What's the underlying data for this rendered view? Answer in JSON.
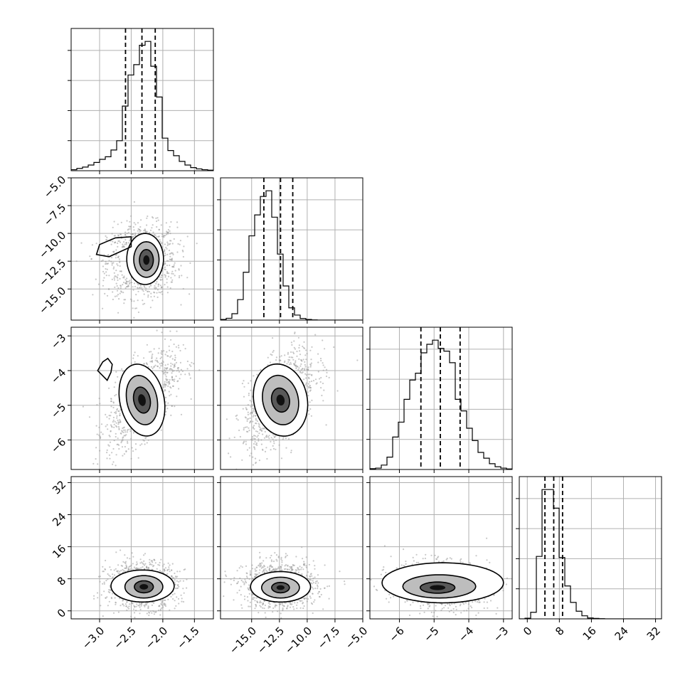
{
  "chart_data": {
    "type": "corner",
    "parameters": [
      {
        "range": [
          -3.45,
          -1.2
        ],
        "ticks": [
          -3.0,
          -2.5,
          -2.0,
          -1.5
        ],
        "tick_labels": [
          "−3.0",
          "−2.5",
          "−2.0",
          "−1.5"
        ],
        "quantiles": [
          -2.59,
          -2.33,
          -2.12
        ],
        "mean": -2.33,
        "sd": 0.22,
        "histogram": {
          "edges": [
            -3.45,
            -3.36,
            -3.27,
            -3.18,
            -3.09,
            -3.0,
            -2.91,
            -2.82,
            -2.73,
            -2.64,
            -2.55,
            -2.46,
            -2.37,
            -2.28,
            -2.19,
            -2.1,
            -2.01,
            -1.92,
            -1.83,
            -1.74,
            -1.65,
            -1.56,
            -1.47,
            -1.38,
            -1.29,
            -1.2
          ],
          "counts": [
            4,
            9,
            14,
            22,
            32,
            44,
            54,
            80,
            116,
            250,
            370,
            410,
            485,
            500,
            404,
            285,
            126,
            78,
            58,
            36,
            22,
            12,
            7,
            4,
            2
          ]
        }
      },
      {
        "range": [
          -17.8,
          -5.0
        ],
        "ticks": [
          -15.0,
          -12.5,
          -10.0,
          -7.5,
          -5.0
        ],
        "tick_labels": [
          "−15.0",
          "−12.5",
          "−10.0",
          "−7.5",
          "−5.0"
        ],
        "quantiles": [
          -13.9,
          -12.4,
          -11.3
        ],
        "mean": -12.45,
        "sd": 1.3,
        "histogram": {
          "edges": [
            -17.8,
            -17.288,
            -16.776,
            -16.264,
            -15.752,
            -15.24,
            -14.728,
            -14.216,
            -13.704,
            -13.192,
            -12.68,
            -12.168,
            -11.656,
            -11.144,
            -10.632,
            -10.12,
            -9.608,
            -9.096,
            -8.584,
            -8.072,
            -7.56,
            -7.048,
            -6.536,
            -6.024,
            -5.512,
            -5.0
          ],
          "counts": [
            3,
            8,
            28,
            90,
            210,
            370,
            462,
            543,
            568,
            452,
            290,
            150,
            54,
            22,
            7,
            3,
            1,
            0,
            0,
            0,
            0,
            0,
            0,
            0,
            0
          ]
        }
      },
      {
        "range": [
          -6.85,
          -2.75
        ],
        "ticks": [
          -6,
          -5,
          -4,
          -3
        ],
        "tick_labels": [
          "−6",
          "−5",
          "−4",
          "−3"
        ],
        "quantiles": [
          -5.38,
          -4.82,
          -4.25
        ],
        "mean": -4.8,
        "sd": 0.55,
        "histogram": {
          "edges": [
            -6.85,
            -6.686,
            -6.522,
            -6.358,
            -6.194,
            -6.03,
            -5.866,
            -5.702,
            -5.538,
            -5.374,
            -5.21,
            -5.046,
            -4.882,
            -4.718,
            -4.554,
            -4.39,
            -4.226,
            -4.062,
            -3.898,
            -3.734,
            -3.57,
            -3.406,
            -3.242,
            -3.078,
            -2.914,
            -2.75
          ],
          "counts": [
            3,
            5,
            16,
            45,
            118,
            172,
            255,
            325,
            350,
            424,
            455,
            470,
            440,
            430,
            388,
            255,
            213,
            150,
            105,
            62,
            41,
            21,
            10,
            5,
            2
          ]
        }
      },
      {
        "range": [
          -2.0,
          33.5
        ],
        "ticks": [
          0,
          8,
          16,
          24,
          32
        ],
        "tick_labels": [
          "0",
          "8",
          "16",
          "24",
          "32"
        ],
        "quantiles": [
          4.4,
          6.6,
          8.8
        ],
        "mean": 6.4,
        "sd": 2.3,
        "histogram": {
          "edges": [
            -2.0,
            -0.58,
            0.84,
            2.26,
            3.68,
            5.1,
            6.52,
            7.94,
            9.36,
            10.78,
            12.2,
            13.62,
            15.04,
            16.46,
            17.88,
            19.3,
            20.72,
            22.14,
            23.56,
            24.98,
            26.4,
            27.82,
            29.24,
            30.66,
            32.08,
            33.5
          ],
          "counts": [
            0,
            3,
            30,
            285,
            590,
            590,
            505,
            280,
            150,
            75,
            35,
            14,
            4,
            2,
            1,
            0,
            0,
            0,
            0,
            0,
            0,
            0,
            0,
            0,
            0
          ]
        }
      }
    ],
    "joint": [
      {
        "x": 0,
        "y": 1,
        "rho": 0.05,
        "contours": [
          {
            "cx": -2.28,
            "cy": -12.3,
            "rx": 0.29,
            "ry": 2.3,
            "rot": 0
          },
          {
            "cx": -2.26,
            "cy": -12.35,
            "rx": 0.2,
            "ry": 1.6,
            "rot": 0
          },
          {
            "cx": -2.26,
            "cy": -12.4,
            "rx": 0.11,
            "ry": 0.95,
            "rot": 0
          }
        ],
        "blob": [
          [
            -3.0,
            -11.0
          ],
          [
            -2.75,
            -10.4
          ],
          [
            -2.5,
            -10.3
          ],
          [
            -2.5,
            -11.2
          ],
          [
            -2.85,
            -12.1
          ],
          [
            -3.05,
            -11.9
          ]
        ]
      },
      {
        "x": 0,
        "y": 2,
        "rho": 0.6,
        "contours": [
          {
            "cx": -2.33,
            "cy": -4.85,
            "rx": 0.35,
            "ry": 1.05,
            "rot": 12
          },
          {
            "cx": -2.33,
            "cy": -4.85,
            "rx": 0.24,
            "ry": 0.72,
            "rot": 12
          },
          {
            "cx": -2.33,
            "cy": -4.85,
            "rx": 0.13,
            "ry": 0.38,
            "rot": 12
          }
        ],
        "blob": [
          [
            -2.95,
            -3.75
          ],
          [
            -2.87,
            -3.65
          ],
          [
            -2.8,
            -3.82
          ],
          [
            -2.82,
            -4.05
          ],
          [
            -2.88,
            -4.28
          ],
          [
            -3.03,
            -4.0
          ]
        ]
      },
      {
        "x": 1,
        "y": 2,
        "rho": 0.55,
        "contours": [
          {
            "cx": -12.4,
            "cy": -4.85,
            "rx": 2.4,
            "ry": 1.05,
            "rot": 12
          },
          {
            "cx": -12.4,
            "cy": -4.85,
            "rx": 1.6,
            "ry": 0.72,
            "rot": 12
          },
          {
            "cx": -12.4,
            "cy": -4.85,
            "rx": 0.8,
            "ry": 0.35,
            "rot": 12
          }
        ]
      },
      {
        "x": 0,
        "y": 3,
        "rho": 0.0,
        "contours": [
          {
            "cx": -2.32,
            "cy": 6.2,
            "rx": 0.5,
            "ry": 4.0,
            "rot": 0
          },
          {
            "cx": -2.3,
            "cy": 6.0,
            "rx": 0.3,
            "ry": 2.8,
            "rot": 0
          },
          {
            "cx": -2.3,
            "cy": 6.0,
            "rx": 0.15,
            "ry": 1.5,
            "rot": 0
          }
        ]
      },
      {
        "x": 1,
        "y": 3,
        "rho": 0.0,
        "contours": [
          {
            "cx": -12.4,
            "cy": 6.0,
            "rx": 2.7,
            "ry": 3.8,
            "rot": 0
          },
          {
            "cx": -12.4,
            "cy": 5.8,
            "rx": 1.7,
            "ry": 2.6,
            "rot": 0
          },
          {
            "cx": -12.4,
            "cy": 5.8,
            "rx": 0.8,
            "ry": 1.3,
            "rot": 0
          }
        ]
      },
      {
        "x": 2,
        "y": 3,
        "rho": -0.1,
        "contours": [
          {
            "cx": -4.75,
            "cy": 7.0,
            "rx": 1.75,
            "ry": 5.0,
            "rot": 0
          },
          {
            "cx": -4.85,
            "cy": 6.1,
            "rx": 1.05,
            "ry": 2.9,
            "rot": 0
          },
          {
            "cx": -4.9,
            "cy": 5.8,
            "rx": 0.5,
            "ry": 1.4,
            "rot": 0
          }
        ]
      }
    ],
    "grid": true,
    "quantile_lines": "dashed"
  }
}
